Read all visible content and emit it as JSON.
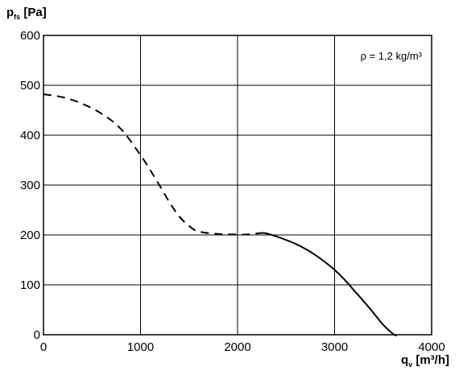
{
  "chart_data": {
    "type": "line",
    "title": "",
    "ylabel": {
      "main": "p",
      "sub": "fs",
      "unit": " [Pa]"
    },
    "xlabel": {
      "main": "q",
      "sub": "v",
      "unit": " [m³/h]"
    },
    "annotation": "ρ = 1,2 kg/m³",
    "xlim": [
      0,
      4000
    ],
    "ylim": [
      0,
      600
    ],
    "xticks": [
      0,
      1000,
      2000,
      3000,
      4000
    ],
    "yticks": [
      0,
      100,
      200,
      300,
      400,
      500,
      600
    ],
    "xtick_labels": [
      "0",
      "1000",
      "2000",
      "3000",
      "4000"
    ],
    "ytick_labels": [
      "0",
      "100",
      "200",
      "300",
      "400",
      "500",
      "600"
    ],
    "grid": true,
    "legend": "none",
    "series": [
      {
        "style": "dashed",
        "color": "#000000",
        "x": [
          0,
          200,
          400,
          600,
          800,
          1000,
          1100,
          1200,
          1300,
          1400,
          1500,
          1600,
          1800,
          2000,
          2100,
          2200,
          2250
        ],
        "y": [
          482,
          476,
          463,
          443,
          412,
          360,
          330,
          298,
          265,
          237,
          218,
          207,
          202,
          201,
          201,
          203,
          204
        ]
      },
      {
        "style": "solid",
        "color": "#000000",
        "x": [
          2250,
          2300,
          2400,
          2500,
          2600,
          2700,
          2800,
          2900,
          3000,
          3100,
          3200,
          3300,
          3400,
          3500,
          3600,
          3640
        ],
        "y": [
          204,
          203,
          197,
          190,
          182,
          172,
          160,
          146,
          130,
          111,
          89,
          67,
          44,
          20,
          2,
          -2
        ]
      }
    ]
  }
}
